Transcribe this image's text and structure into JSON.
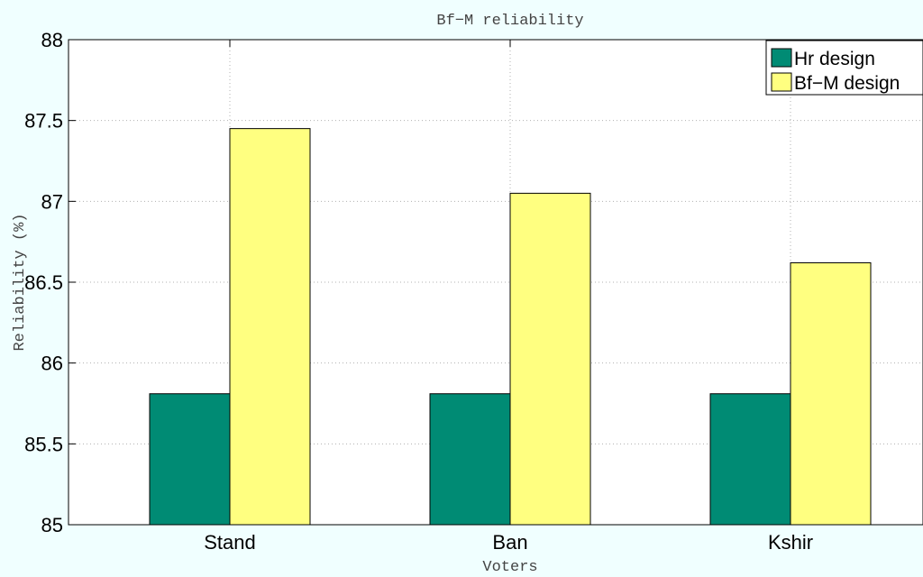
{
  "chart_data": {
    "type": "bar",
    "title": "Bf−M reliability",
    "xlabel": "Voters",
    "ylabel": "Reliability (%)",
    "categories": [
      "Stand",
      "Ban",
      "Kshir"
    ],
    "series": [
      {
        "name": "Hr design",
        "values": [
          85.81,
          85.81,
          85.81
        ],
        "color": "#008b74"
      },
      {
        "name": "Bf−M design",
        "values": [
          87.45,
          87.05,
          86.62
        ],
        "color": "#ffff80"
      }
    ],
    "ylim": [
      85,
      88
    ],
    "yticks": [
      "85",
      "85.5",
      "86",
      "86.5",
      "87",
      "87.5",
      "88"
    ],
    "grid": true,
    "legend_position": "top-right",
    "background": "#f0ffff",
    "plot_background": "#ffffff"
  }
}
